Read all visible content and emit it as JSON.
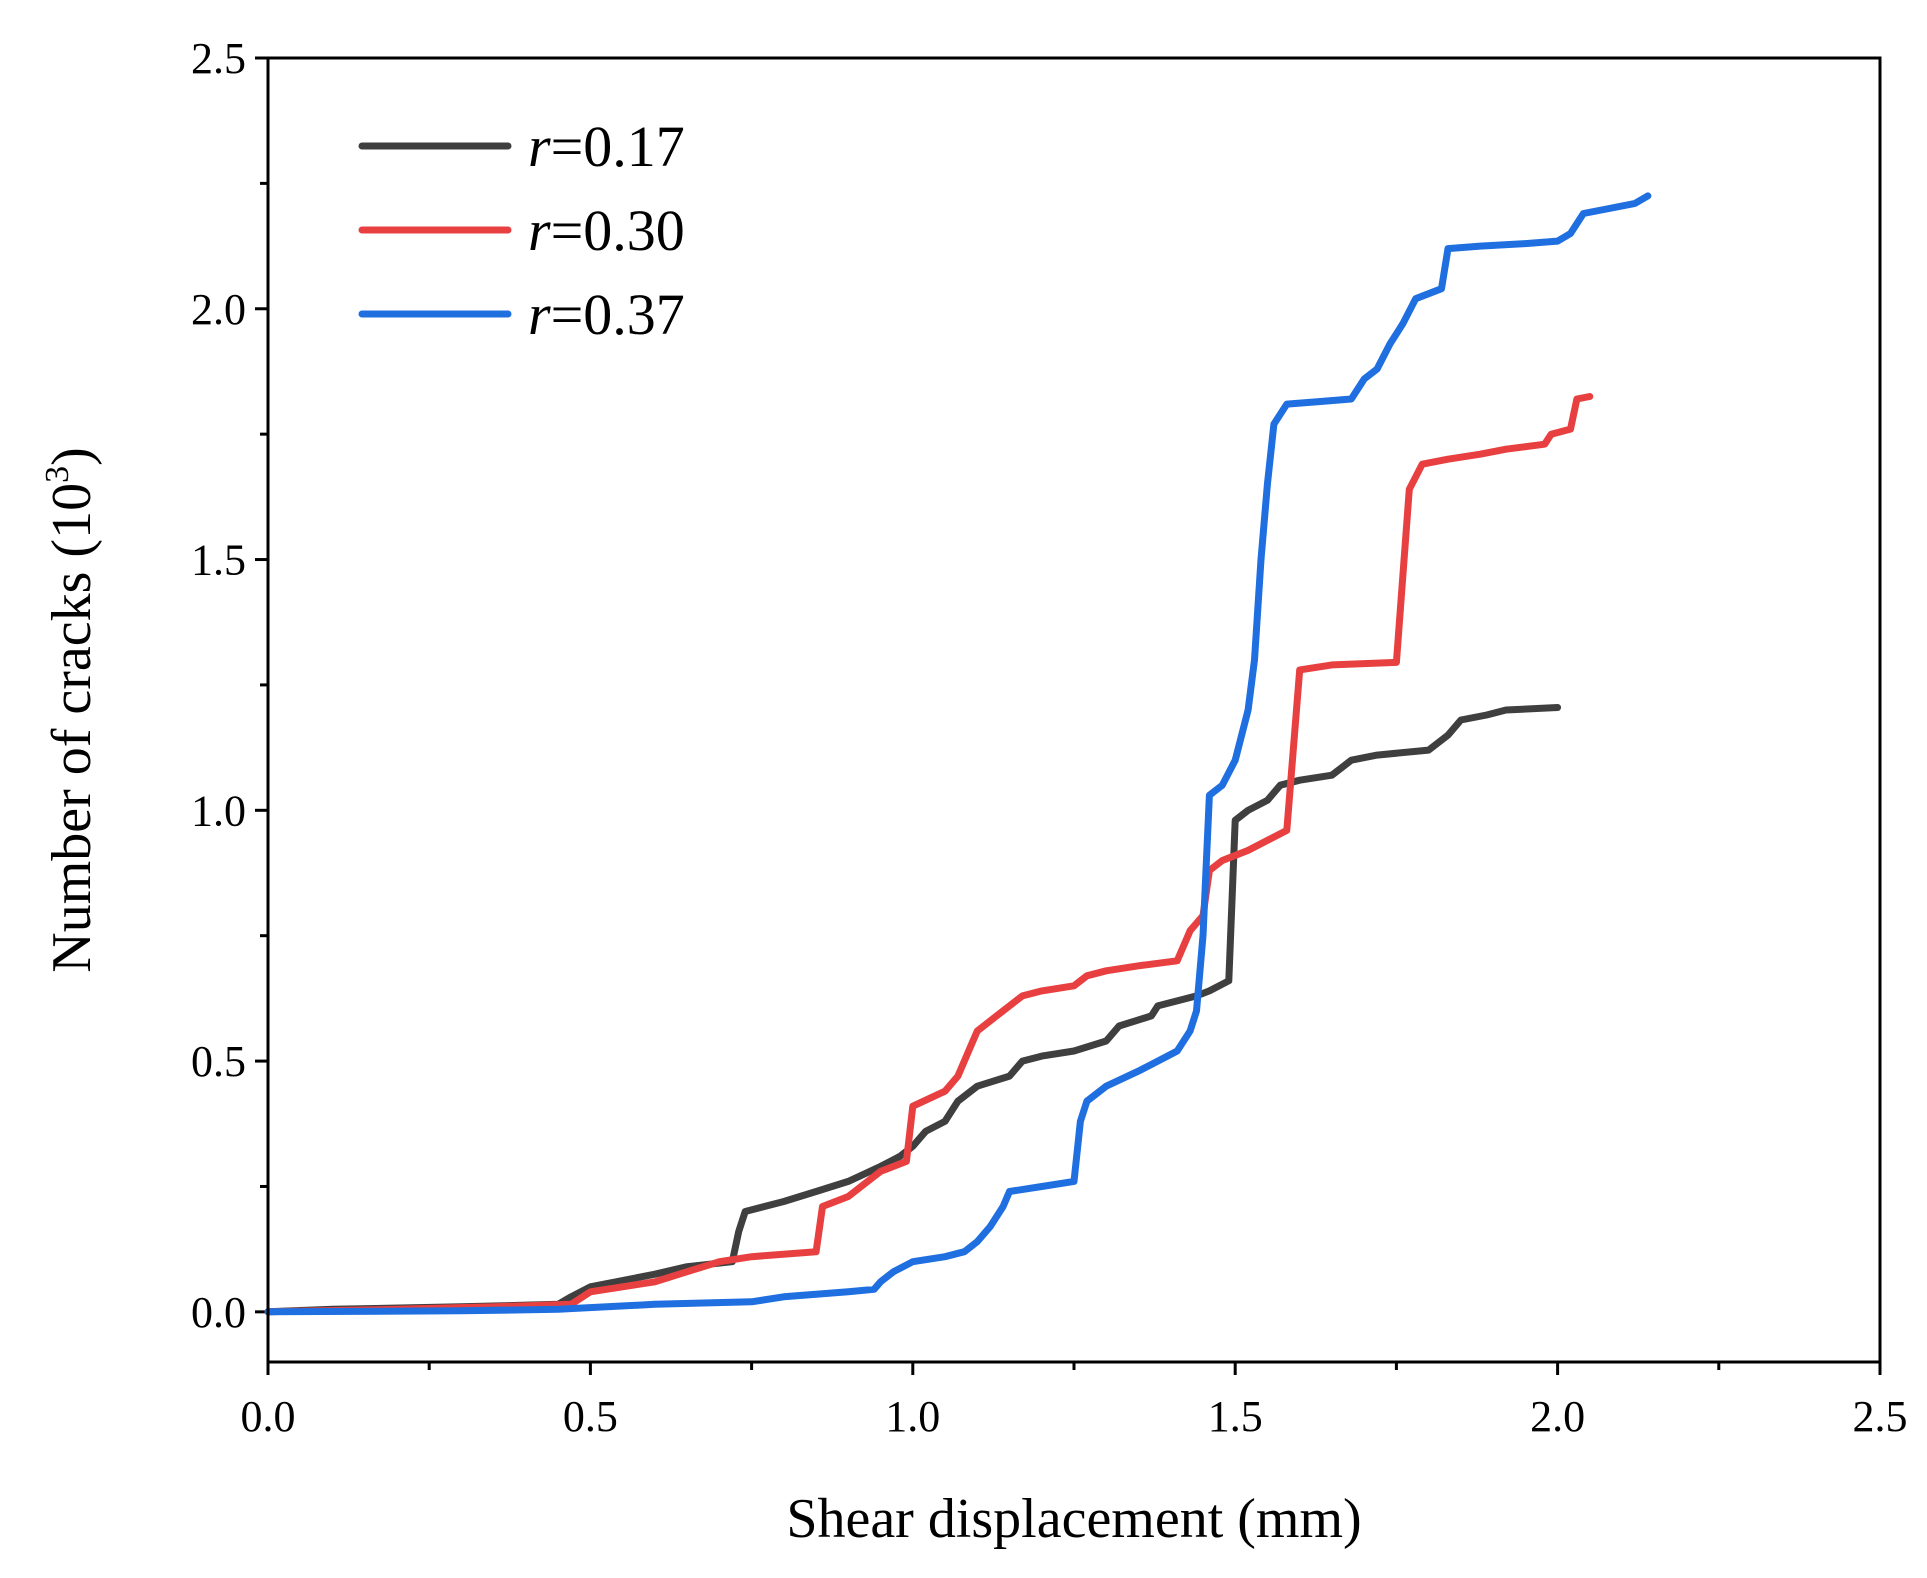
{
  "chart_data": {
    "type": "line",
    "xlabel": "Shear displacement (mm)",
    "ylabel_main": "Number of cracks (10",
    "ylabel_exp": "3",
    "ylabel_close": ")",
    "xlim": [
      0.0,
      2.5
    ],
    "ylim": [
      -0.1,
      2.5
    ],
    "x_ticks": [
      "0.0",
      "0.5",
      "1.0",
      "1.5",
      "2.0",
      "2.5"
    ],
    "x_tick_values": [
      0.0,
      0.5,
      1.0,
      1.5,
      2.0,
      2.5
    ],
    "y_ticks": [
      "0.0",
      "0.5",
      "1.0",
      "1.5",
      "2.0",
      "2.5"
    ],
    "y_tick_values": [
      0.0,
      0.5,
      1.0,
      1.5,
      2.0,
      2.5
    ],
    "grid": false,
    "legend_position": "top-left",
    "series": [
      {
        "name_var": "r",
        "name_val": "=0.17",
        "color": "#3f3f3f",
        "points": [
          [
            0.0,
            0.0
          ],
          [
            0.1,
            0.005
          ],
          [
            0.3,
            0.01
          ],
          [
            0.45,
            0.015
          ],
          [
            0.47,
            0.03
          ],
          [
            0.5,
            0.05
          ],
          [
            0.6,
            0.075
          ],
          [
            0.65,
            0.09
          ],
          [
            0.72,
            0.1
          ],
          [
            0.73,
            0.16
          ],
          [
            0.74,
            0.2
          ],
          [
            0.8,
            0.22
          ],
          [
            0.85,
            0.24
          ],
          [
            0.9,
            0.26
          ],
          [
            0.95,
            0.29
          ],
          [
            0.98,
            0.31
          ],
          [
            1.0,
            0.33
          ],
          [
            1.02,
            0.36
          ],
          [
            1.05,
            0.38
          ],
          [
            1.07,
            0.42
          ],
          [
            1.1,
            0.45
          ],
          [
            1.15,
            0.47
          ],
          [
            1.17,
            0.5
          ],
          [
            1.2,
            0.51
          ],
          [
            1.25,
            0.52
          ],
          [
            1.3,
            0.54
          ],
          [
            1.32,
            0.57
          ],
          [
            1.37,
            0.59
          ],
          [
            1.38,
            0.61
          ],
          [
            1.44,
            0.63
          ],
          [
            1.46,
            0.64
          ],
          [
            1.49,
            0.66
          ],
          [
            1.5,
            0.98
          ],
          [
            1.52,
            1.0
          ],
          [
            1.55,
            1.02
          ],
          [
            1.57,
            1.05
          ],
          [
            1.6,
            1.06
          ],
          [
            1.65,
            1.07
          ],
          [
            1.68,
            1.1
          ],
          [
            1.72,
            1.11
          ],
          [
            1.8,
            1.12
          ],
          [
            1.83,
            1.15
          ],
          [
            1.85,
            1.18
          ],
          [
            1.89,
            1.19
          ],
          [
            1.92,
            1.2
          ],
          [
            2.0,
            1.205
          ]
        ]
      },
      {
        "name_var": "r",
        "name_val": "=0.30",
        "color": "#e84040",
        "points": [
          [
            0.0,
            0.0
          ],
          [
            0.2,
            0.005
          ],
          [
            0.35,
            0.01
          ],
          [
            0.47,
            0.015
          ],
          [
            0.5,
            0.04
          ],
          [
            0.55,
            0.05
          ],
          [
            0.6,
            0.06
          ],
          [
            0.65,
            0.08
          ],
          [
            0.7,
            0.1
          ],
          [
            0.75,
            0.11
          ],
          [
            0.85,
            0.12
          ],
          [
            0.86,
            0.21
          ],
          [
            0.9,
            0.23
          ],
          [
            0.93,
            0.26
          ],
          [
            0.95,
            0.28
          ],
          [
            0.99,
            0.3
          ],
          [
            1.0,
            0.41
          ],
          [
            1.05,
            0.44
          ],
          [
            1.07,
            0.47
          ],
          [
            1.09,
            0.53
          ],
          [
            1.1,
            0.56
          ],
          [
            1.13,
            0.59
          ],
          [
            1.15,
            0.61
          ],
          [
            1.17,
            0.63
          ],
          [
            1.2,
            0.64
          ],
          [
            1.25,
            0.65
          ],
          [
            1.27,
            0.67
          ],
          [
            1.3,
            0.68
          ],
          [
            1.35,
            0.69
          ],
          [
            1.41,
            0.7
          ],
          [
            1.43,
            0.76
          ],
          [
            1.45,
            0.79
          ],
          [
            1.46,
            0.88
          ],
          [
            1.48,
            0.9
          ],
          [
            1.52,
            0.92
          ],
          [
            1.55,
            0.94
          ],
          [
            1.58,
            0.96
          ],
          [
            1.6,
            1.28
          ],
          [
            1.65,
            1.29
          ],
          [
            1.75,
            1.295
          ],
          [
            1.77,
            1.64
          ],
          [
            1.79,
            1.69
          ],
          [
            1.83,
            1.7
          ],
          [
            1.88,
            1.71
          ],
          [
            1.92,
            1.72
          ],
          [
            1.98,
            1.73
          ],
          [
            1.99,
            1.75
          ],
          [
            2.02,
            1.76
          ],
          [
            2.03,
            1.82
          ],
          [
            2.05,
            1.825
          ]
        ]
      },
      {
        "name_var": "r",
        "name_val": "=0.37",
        "color": "#1f6fe0",
        "points": [
          [
            0.0,
            0.0
          ],
          [
            0.3,
            0.002
          ],
          [
            0.45,
            0.005
          ],
          [
            0.6,
            0.015
          ],
          [
            0.75,
            0.02
          ],
          [
            0.8,
            0.03
          ],
          [
            0.9,
            0.04
          ],
          [
            0.94,
            0.045
          ],
          [
            0.95,
            0.06
          ],
          [
            0.97,
            0.08
          ],
          [
            1.0,
            0.1
          ],
          [
            1.05,
            0.11
          ],
          [
            1.08,
            0.12
          ],
          [
            1.1,
            0.14
          ],
          [
            1.12,
            0.17
          ],
          [
            1.14,
            0.21
          ],
          [
            1.15,
            0.24
          ],
          [
            1.2,
            0.25
          ],
          [
            1.25,
            0.26
          ],
          [
            1.26,
            0.38
          ],
          [
            1.27,
            0.42
          ],
          [
            1.3,
            0.45
          ],
          [
            1.35,
            0.48
          ],
          [
            1.38,
            0.5
          ],
          [
            1.41,
            0.52
          ],
          [
            1.43,
            0.56
          ],
          [
            1.44,
            0.6
          ],
          [
            1.45,
            0.75
          ],
          [
            1.46,
            1.03
          ],
          [
            1.48,
            1.05
          ],
          [
            1.5,
            1.1
          ],
          [
            1.52,
            1.2
          ],
          [
            1.53,
            1.3
          ],
          [
            1.54,
            1.5
          ],
          [
            1.55,
            1.65
          ],
          [
            1.56,
            1.77
          ],
          [
            1.58,
            1.81
          ],
          [
            1.63,
            1.815
          ],
          [
            1.68,
            1.82
          ],
          [
            1.7,
            1.86
          ],
          [
            1.72,
            1.88
          ],
          [
            1.74,
            1.93
          ],
          [
            1.76,
            1.97
          ],
          [
            1.78,
            2.02
          ],
          [
            1.82,
            2.04
          ],
          [
            1.83,
            2.12
          ],
          [
            1.88,
            2.125
          ],
          [
            1.95,
            2.13
          ],
          [
            2.0,
            2.135
          ],
          [
            2.02,
            2.15
          ],
          [
            2.04,
            2.19
          ],
          [
            2.08,
            2.2
          ],
          [
            2.12,
            2.21
          ],
          [
            2.14,
            2.225
          ]
        ]
      }
    ]
  }
}
